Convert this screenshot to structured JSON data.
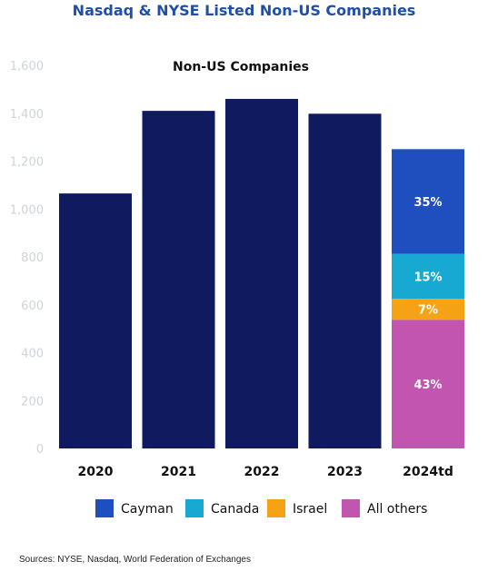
{
  "header": {
    "title": "Nasdaq & NYSE Listed Non-US Companies"
  },
  "footer": {
    "source": "Sources: NYSE, Nasdaq, World Federation of Exchanges"
  },
  "chart_data": {
    "type": "bar",
    "title": "Non-US Companies",
    "categories": [
      "2020",
      "2021",
      "2022",
      "2023",
      "2024td"
    ],
    "values": [
      1065,
      1410,
      1460,
      1398,
      1250
    ],
    "ylim": [
      0,
      1600
    ],
    "yticks": [
      0,
      200,
      400,
      600,
      800,
      1000,
      1200,
      1400,
      1600
    ],
    "ytick_labels": [
      "0",
      "200",
      "400",
      "600",
      "800",
      "1,000",
      "1,200",
      "1,400",
      "1,600"
    ],
    "grid": false,
    "bar_color": "#0f1b5e",
    "stacked_category": "2024td",
    "stack": [
      {
        "name": "All others",
        "share": 0.43,
        "label": "43%",
        "color": "#c155b0"
      },
      {
        "name": "Israel",
        "share": 0.07,
        "label": "7%",
        "color": "#f5a315"
      },
      {
        "name": "Canada",
        "share": 0.15,
        "label": "15%",
        "color": "#17a9d1"
      },
      {
        "name": "Cayman",
        "share": 0.35,
        "label": "35%",
        "color": "#1f4fbf"
      }
    ],
    "legend": {
      "placement": "bottom",
      "items": [
        {
          "name": "Cayman",
          "color": "#1f4fbf"
        },
        {
          "name": "Canada",
          "color": "#17a9d1"
        },
        {
          "name": "Israel",
          "color": "#f5a315"
        },
        {
          "name": "All others",
          "color": "#c155b0"
        }
      ]
    }
  }
}
